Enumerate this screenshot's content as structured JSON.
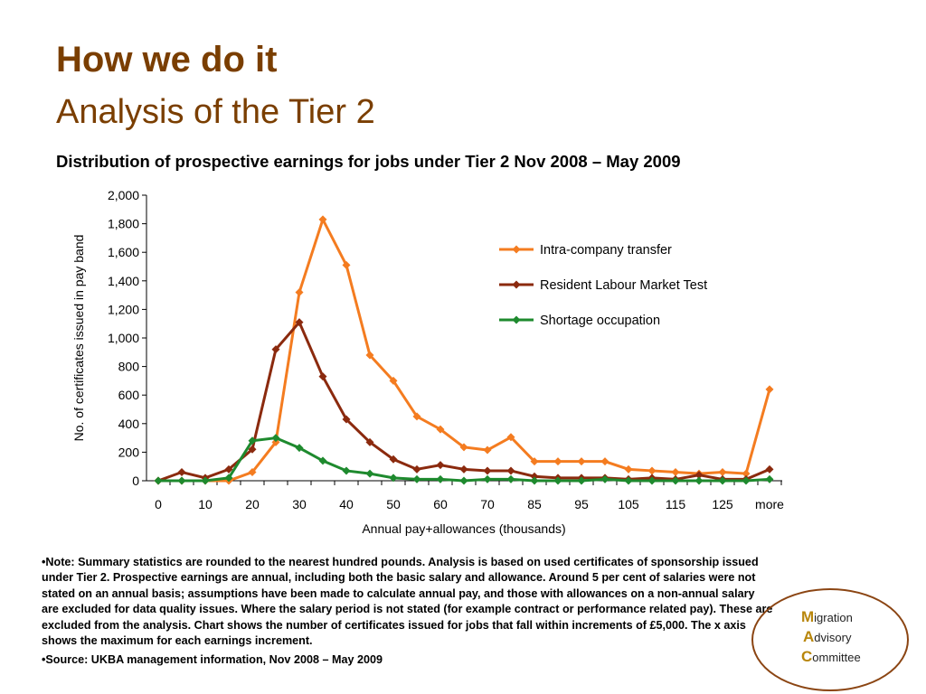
{
  "slide": {
    "title": "How we do it",
    "subtitle": "Analysis of the Tier 2"
  },
  "chart_data": {
    "type": "line",
    "title": "Distribution of prospective earnings for jobs under Tier 2 Nov 2008 – May 2009",
    "y_label": "No. of certificates issued in pay band",
    "x_label": "Annual pay+allowances (thousands)",
    "categories": [
      "0",
      null,
      "10",
      null,
      "20",
      null,
      "30",
      null,
      "40",
      null,
      "50",
      null,
      "60",
      null,
      "70",
      null,
      "85",
      null,
      "95",
      null,
      "105",
      null,
      "115",
      null,
      "125",
      null,
      "more"
    ],
    "series": [
      {
        "name": "Intra-company transfer",
        "color": "#f47c20",
        "values": [
          0,
          0,
          0,
          0,
          60,
          270,
          1320,
          1830,
          1510,
          880,
          700,
          450,
          360,
          235,
          215,
          305,
          135,
          135,
          135,
          135,
          80,
          70,
          60,
          50,
          60,
          50,
          640
        ]
      },
      {
        "name": "Resident Labour Market Test",
        "color": "#8b2a0e",
        "values": [
          0,
          60,
          20,
          80,
          220,
          920,
          1110,
          730,
          430,
          270,
          150,
          80,
          110,
          80,
          70,
          70,
          30,
          20,
          20,
          20,
          10,
          20,
          10,
          40,
          10,
          10,
          80
        ]
      },
      {
        "name": "Shortage occupation",
        "color": "#1e8a2e",
        "values": [
          0,
          0,
          0,
          20,
          280,
          300,
          230,
          140,
          70,
          50,
          20,
          10,
          10,
          0,
          10,
          10,
          0,
          0,
          0,
          10,
          0,
          0,
          0,
          0,
          0,
          0,
          10
        ]
      }
    ],
    "ylim": [
      0,
      2000
    ],
    "yticks": [
      0,
      200,
      400,
      600,
      800,
      {
        "value": 1000,
        "label": "1,000"
      },
      {
        "value": 1200,
        "label": "1,200"
      },
      {
        "value": 1400,
        "label": "1,400"
      },
      {
        "value": 1600,
        "label": "1,600"
      },
      {
        "value": 1800,
        "label": "1,800"
      },
      {
        "value": 2000,
        "label": "2,000"
      }
    ],
    "grid": false,
    "legend": "right"
  },
  "notes": [
    "•Note: Summary statistics are rounded to the nearest hundred pounds. Analysis is based on used certificates of sponsorship issued under Tier 2. Prospective earnings are annual, including both the basic salary and allowance. Around 5 per cent of salaries were not stated on an annual basis; assumptions have been made to calculate annual pay, and those with allowances on a non-annual salary are excluded for data quality issues. Where the salary period is not stated (for example contract or performance related pay). These are excluded from the analysis. Chart shows the number of certificates issued for jobs that fall within increments of £5,000. The x axis shows the maximum for each earnings increment.",
    "•Source: UKBA management information, Nov 2008 – May 2009"
  ],
  "logo": [
    {
      "initial": "M",
      "rest": "igration"
    },
    {
      "initial": "A",
      "rest": "dvisory"
    },
    {
      "initial": "C",
      "rest": "ommittee"
    }
  ]
}
